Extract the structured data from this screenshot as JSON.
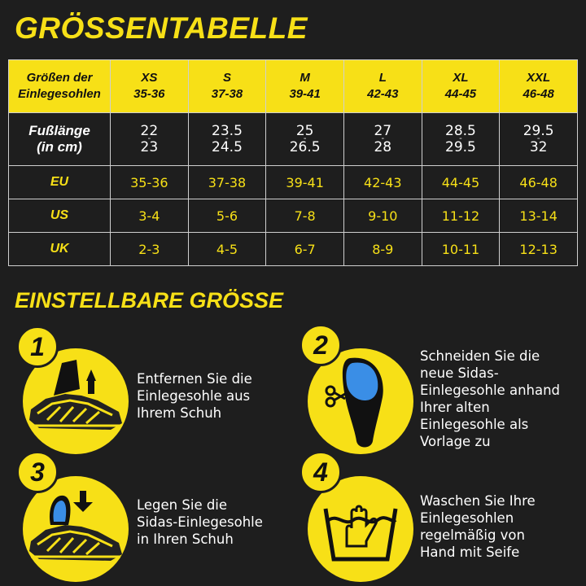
{
  "title": "GRÖSSENTABELLE",
  "table": {
    "header_label": [
      "Größen der",
      "Einlegesohlen"
    ],
    "sizes": [
      {
        "name": "XS",
        "range": "35-36"
      },
      {
        "name": "S",
        "range": "37-38"
      },
      {
        "name": "M",
        "range": "39-41"
      },
      {
        "name": "L",
        "range": "42-43"
      },
      {
        "name": "XL",
        "range": "44-45"
      },
      {
        "name": "XXL",
        "range": "46-48"
      }
    ],
    "foot_length_label": [
      "Fußlänge",
      "(in cm)"
    ],
    "foot_length": [
      {
        "min": "22",
        "max": "23"
      },
      {
        "min": "23.5",
        "max": "24.5"
      },
      {
        "min": "25",
        "max": "26.5"
      },
      {
        "min": "27",
        "max": "28"
      },
      {
        "min": "28.5",
        "max": "29.5"
      },
      {
        "min": "29.5",
        "max": "32"
      }
    ],
    "rows": [
      {
        "label": "EU",
        "values": [
          "35-36",
          "37-38",
          "39-41",
          "42-43",
          "44-45",
          "46-48"
        ]
      },
      {
        "label": "US",
        "values": [
          "3-4",
          "5-6",
          "7-8",
          "9-10",
          "11-12",
          "13-14"
        ]
      },
      {
        "label": "UK",
        "values": [
          "2-3",
          "4-5",
          "6-7",
          "8-9",
          "10-11",
          "12-13"
        ]
      }
    ]
  },
  "section_title": "EINSTELLBARE GRÖSSE",
  "steps": [
    {
      "number": "1",
      "icon": "shoe-remove-insole-icon",
      "lines": [
        "Entfernen Sie die",
        "Einlegesohle aus",
        "Ihrem Schuh"
      ]
    },
    {
      "number": "2",
      "icon": "scissors-insole-icon",
      "lines": [
        "Schneiden Sie die",
        "neue Sidas-",
        "Einlegesohle anhand",
        "Ihrer alten",
        "Einlegesohle als",
        "Vorlage zu"
      ]
    },
    {
      "number": "3",
      "icon": "shoe-insert-insole-icon",
      "lines": [
        "Legen Sie die",
        "Sidas-Einlegesohle",
        "in Ihren Schuh"
      ]
    },
    {
      "number": "4",
      "icon": "hand-wash-icon",
      "lines": [
        "Waschen Sie Ihre",
        "Einlegesohlen",
        "regelmäßig von",
        "Hand mit Seife"
      ]
    }
  ],
  "colors": {
    "accent": "#f7e017",
    "background": "#1e1e1e",
    "text": "#ffffff"
  }
}
